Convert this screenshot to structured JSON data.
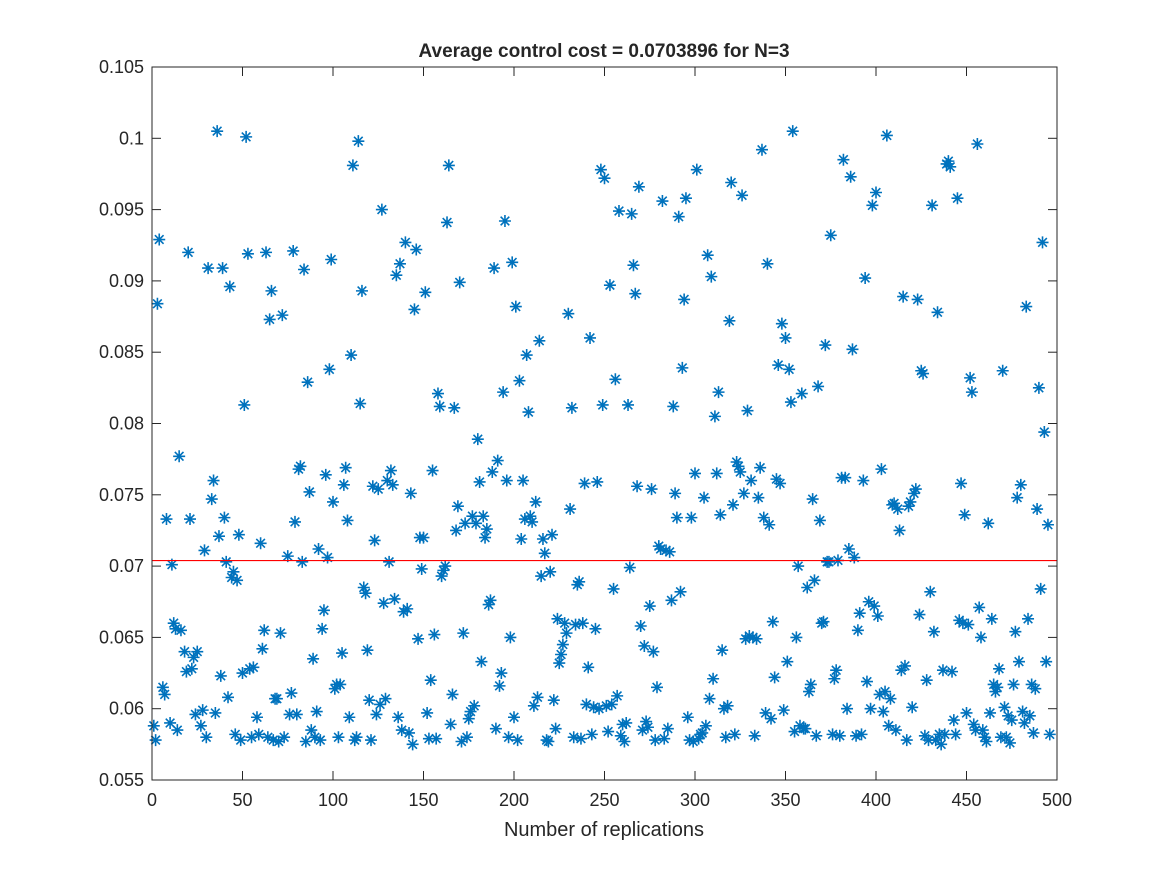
{
  "chart_data": {
    "type": "scatter",
    "title": "Average control cost = 0.0703896 for N=3",
    "xlabel": "Number of replications",
    "xlim": [
      0,
      500
    ],
    "xticks": [
      0,
      50,
      100,
      150,
      200,
      250,
      300,
      350,
      400,
      450,
      500
    ],
    "ylim": [
      0.055,
      0.105
    ],
    "yticks": [
      0.055,
      0.06,
      0.065,
      0.07,
      0.075,
      0.08,
      0.085,
      0.09,
      0.095,
      0.1,
      0.105
    ],
    "color": "#0072bd",
    "marker": "asterisk",
    "reference_line": {
      "value": 0.0703896,
      "color": "#ff0000"
    },
    "x": [
      1,
      2,
      3,
      4,
      6,
      7,
      8,
      10,
      11,
      12,
      13,
      14,
      15,
      16,
      18,
      19,
      20,
      21,
      22,
      23,
      24,
      25,
      27,
      28,
      29,
      30,
      31,
      33,
      34,
      35,
      36,
      37,
      38,
      39,
      40,
      41,
      42,
      43,
      44,
      45,
      46,
      47,
      48,
      49,
      50,
      51,
      52,
      53,
      54,
      55,
      56,
      58,
      59,
      60,
      61,
      62,
      63,
      64,
      65,
      66,
      67,
      68,
      69,
      70,
      71,
      72,
      73,
      75,
      76,
      77,
      78,
      79,
      80,
      81,
      82,
      83,
      84,
      85,
      86,
      87,
      88,
      89,
      90,
      91,
      92,
      93,
      94,
      95,
      96,
      97,
      98,
      99,
      100,
      101,
      102,
      103,
      104,
      105,
      106,
      107,
      108,
      109,
      110,
      111,
      112,
      113,
      114,
      115,
      116,
      117,
      118,
      119,
      120,
      121,
      122,
      123,
      124,
      125,
      126,
      127,
      128,
      129,
      130,
      131,
      132,
      133,
      134,
      135,
      136,
      137,
      138,
      139,
      140,
      141,
      142,
      143,
      144,
      145,
      146,
      147,
      148,
      149,
      150,
      151,
      152,
      153,
      154,
      155,
      156,
      157,
      158,
      159,
      160,
      161,
      162,
      163,
      164,
      165,
      166,
      167,
      168,
      169,
      170,
      171,
      172,
      173,
      174,
      175,
      176,
      177,
      178,
      179,
      180,
      181,
      182,
      183,
      184,
      185,
      186,
      187,
      188,
      189,
      190,
      191,
      192,
      193,
      194,
      195,
      196,
      197,
      198,
      199,
      200,
      201,
      202,
      203,
      204,
      205,
      206,
      207,
      208,
      209,
      210,
      211,
      212,
      213,
      214,
      215,
      216,
      217,
      218,
      219,
      220,
      221,
      222,
      223,
      224,
      225,
      226,
      227,
      228,
      229,
      230,
      231,
      232,
      233,
      234,
      235,
      236,
      237,
      238,
      239,
      240,
      241,
      242,
      243,
      244,
      245,
      246,
      247,
      248,
      249,
      250,
      251,
      252,
      253,
      254,
      255,
      256,
      257,
      258,
      259,
      260,
      261,
      262,
      263,
      264,
      265,
      266,
      267,
      268,
      269,
      270,
      271,
      272,
      273,
      274,
      275,
      276,
      277,
      278,
      279,
      280,
      281,
      282,
      283,
      284,
      285,
      286,
      287,
      288,
      289,
      290,
      291,
      292,
      293,
      294,
      295,
      296,
      297,
      298,
      299,
      300,
      301,
      302,
      303,
      304,
      305,
      306,
      307,
      308,
      309,
      310,
      311,
      312,
      313,
      314,
      315,
      316,
      317,
      318,
      319,
      320,
      321,
      322,
      323,
      324,
      325,
      326,
      327,
      328,
      329,
      330,
      331,
      332,
      333,
      334,
      335,
      336,
      337,
      338,
      339,
      340,
      341,
      342,
      343,
      344,
      345,
      346,
      347,
      348,
      349,
      350,
      351,
      352,
      353,
      354,
      355,
      356,
      357,
      358,
      359,
      360,
      361,
      362,
      363,
      364,
      365,
      366,
      367,
      368,
      369,
      370,
      371,
      372,
      373,
      374,
      375,
      376,
      377,
      378,
      379,
      380,
      381,
      382,
      383,
      384,
      385,
      386,
      387,
      388,
      389,
      390,
      391,
      392,
      393,
      394,
      395,
      396,
      397,
      398,
      399,
      400,
      401,
      402,
      403,
      404,
      405,
      406,
      407,
      408,
      409,
      410,
      411,
      412,
      413,
      414,
      415,
      416,
      417,
      418,
      419,
      420,
      421,
      422,
      423,
      424,
      425,
      426,
      427,
      428,
      429,
      430,
      431,
      432,
      433,
      434,
      435,
      436,
      437,
      438,
      439,
      440,
      441,
      442,
      443,
      444,
      445,
      446,
      447,
      448,
      449,
      450,
      451,
      452,
      453,
      454,
      455,
      456,
      457,
      458,
      459,
      460,
      461,
      462,
      463,
      464,
      465,
      466,
      467,
      468,
      469,
      470,
      471,
      472,
      473,
      474,
      475,
      476,
      477,
      478,
      479,
      480,
      481,
      482,
      483,
      484,
      485,
      486,
      487,
      488,
      489,
      490,
      491,
      492,
      493,
      494,
      495,
      496
    ],
    "values": [
      0.0588,
      0.0578,
      0.0884,
      0.0929,
      0.0615,
      0.061,
      0.0733,
      0.059,
      0.0701,
      0.066,
      0.0656,
      0.0585,
      0.0777,
      0.0655,
      0.064,
      0.0626,
      0.092,
      0.0733,
      0.0628,
      0.0636,
      0.0596,
      0.064,
      0.0588,
      0.0599,
      0.0711,
      0.058,
      0.0909,
      0.0747,
      0.076,
      0.0597,
      0.1005,
      0.0721,
      0.0623,
      0.0909,
      0.0734,
      0.0703,
      0.0608,
      0.0896,
      0.0692,
      0.0696,
      0.0582,
      0.069,
      0.0722,
      0.0578,
      0.0625,
      0.0813,
      0.1001,
      0.0919,
      0.0628,
      0.058,
      0.0629,
      0.0594,
      0.0582,
      0.0716,
      0.0642,
      0.0655,
      0.092,
      0.058,
      0.0873,
      0.0893,
      0.0578,
      0.0607,
      0.0607,
      0.0577,
      0.0653,
      0.0876,
      0.058,
      0.0707,
      0.0596,
      0.0611,
      0.0921,
      0.0731,
      0.0596,
      0.0768,
      0.077,
      0.0703,
      0.0908,
      0.0577,
      0.0829,
      0.0752,
      0.0585,
      0.0635,
      0.058,
      0.0598,
      0.0712,
      0.0578,
      0.0656,
      0.0669,
      0.0764,
      0.0706,
      0.0838,
      0.0915,
      0.0745,
      0.0614,
      0.0617,
      0.058,
      0.0617,
      0.0639,
      0.0757,
      0.0769,
      0.0732,
      0.0594,
      0.0848,
      0.0981,
      0.0578,
      0.058,
      0.0998,
      0.0814,
      0.0893,
      0.0685,
      0.0681,
      0.0641,
      0.0606,
      0.0578,
      0.0756,
      0.0718,
      0.0596,
      0.0754,
      0.0603,
      0.095,
      0.0674,
      0.0607,
      0.076,
      0.0703,
      0.0767,
      0.0757,
      0.0677,
      0.0904,
      0.0594,
      0.0912,
      0.0585,
      0.0668,
      0.0927,
      0.067,
      0.0583,
      0.0751,
      0.0575,
      0.088,
      0.0922,
      0.0649,
      0.072,
      0.0698,
      0.072,
      0.0892,
      0.0597,
      0.0579,
      0.062,
      0.0767,
      0.0652,
      0.0579,
      0.0821,
      0.0812,
      0.0693,
      0.0697,
      0.07,
      0.0941,
      0.0981,
      0.0589,
      0.061,
      0.0811,
      0.0725,
      0.0742,
      0.0899,
      0.0577,
      0.0653,
      0.073,
      0.058,
      0.0593,
      0.0598,
      0.0735,
      0.0602,
      0.073,
      0.0789,
      0.0759,
      0.0633,
      0.0735,
      0.072,
      0.0726,
      0.0673,
      0.0676,
      0.0766,
      0.0909,
      0.0586,
      0.0774,
      0.0616,
      0.0625,
      0.0822,
      0.0942,
      0.076,
      0.058,
      0.065,
      0.0913,
      0.0594,
      0.0882,
      0.0578,
      0.083,
      0.0719,
      0.076,
      0.0733,
      0.0848,
      0.0808,
      0.0735,
      0.0731,
      0.0602,
      0.0745,
      0.0608,
      0.0858,
      0.0693,
      0.0719,
      0.0709,
      0.0578,
      0.0577,
      0.0696,
      0.0722,
      0.0606,
      0.0586,
      0.0663,
      0.0632,
      0.0638,
      0.0645,
      0.066,
      0.0653,
      0.0877,
      0.074,
      0.0811,
      0.058,
      0.0659,
      0.0687,
      0.0689,
      0.0579,
      0.066,
      0.0758,
      0.0603,
      0.0629,
      0.086,
      0.0582,
      0.0601,
      0.0656,
      0.0759,
      0.06,
      0.0978,
      0.0813,
      0.0972,
      0.0602,
      0.0584,
      0.0897,
      0.0603,
      0.0684,
      0.0831,
      0.0609,
      0.0949,
      0.0581,
      0.0589,
      0.0577,
      0.059,
      0.0813,
      0.0699,
      0.0947,
      0.0911,
      0.0891,
      0.0756,
      0.0966,
      0.0658,
      0.0585,
      0.0644,
      0.0591,
      0.0587,
      0.0672,
      0.0754,
      0.064,
      0.0578,
      0.0615,
      0.0714,
      0.0712,
      0.0956,
      0.0579,
      0.0711,
      0.0586,
      0.071,
      0.0676,
      0.0812,
      0.0751,
      0.0734,
      0.0945,
      0.0682,
      0.0839,
      0.0887,
      0.0958,
      0.0594,
      0.0578,
      0.0734,
      0.0577,
      0.0765,
      0.0978,
      0.0579,
      0.0582,
      0.0583,
      0.0748,
      0.0588,
      0.0918,
      0.0607,
      0.0903,
      0.0621,
      0.0805,
      0.0765,
      0.0822,
      0.0736,
      0.0641,
      0.06,
      0.058,
      0.0602,
      0.0872,
      0.0969,
      0.0743,
      0.0582,
      0.0773,
      0.077,
      0.0766,
      0.096,
      0.0751,
      0.0649,
      0.0809,
      0.0651,
      0.076,
      0.065,
      0.0581,
      0.0649,
      0.0748,
      0.0769,
      0.0992,
      0.0734,
      0.0597,
      0.0912,
      0.0729,
      0.0593,
      0.0661,
      0.0622,
      0.0761,
      0.0841,
      0.0758,
      0.087,
      0.0599,
      0.086,
      0.0633,
      0.0838,
      0.0815,
      0.1005,
      0.0584,
      0.065,
      0.07,
      0.0588,
      0.0821,
      0.0586,
      0.0586,
      0.0685,
      0.0612,
      0.0617,
      0.0747,
      0.069,
      0.0581,
      0.0826,
      0.0732,
      0.066,
      0.0661,
      0.0855,
      0.0703,
      0.0703,
      0.0932,
      0.0582,
      0.0621,
      0.0627,
      0.0704,
      0.0581,
      0.0762,
      0.0985,
      0.0762,
      0.06,
      0.0712,
      0.0973,
      0.0852,
      0.0706,
      0.0581,
      0.0655,
      0.0667,
      0.0582,
      0.076,
      0.0902,
      0.0619,
      0.0675,
      0.06,
      0.0953,
      0.0672,
      0.0962,
      0.0665,
      0.061,
      0.0768,
      0.0598,
      0.0612,
      0.1002,
      0.0588,
      0.0607,
      0.0743,
      0.0744,
      0.0585,
      0.074,
      0.0725,
      0.0627,
      0.0889,
      0.063,
      0.0578,
      0.0742,
      0.0745,
      0.0601,
      0.0751,
      0.0754,
      0.0887,
      0.0666,
      0.0837,
      0.0835,
      0.0581,
      0.062,
      0.0578,
      0.0682,
      0.0953,
      0.0654,
      0.0578,
      0.0878,
      0.0582,
      0.0575,
      0.0627,
      0.0582,
      0.0982,
      0.0984,
      0.098,
      0.0626,
      0.0592,
      0.0582,
      0.0958,
      0.0662,
      0.0758,
      0.066,
      0.0736,
      0.0597,
      0.0659,
      0.0832,
      0.0822,
      0.0589,
      0.0585,
      0.0996,
      0.0671,
      0.065,
      0.0585,
      0.058,
      0.0577,
      0.073,
      0.0597,
      0.0663,
      0.0617,
      0.0612,
      0.0615,
      0.0628,
      0.058,
      0.0837,
      0.0601,
      0.058,
      0.0595,
      0.0576,
      0.0592,
      0.0617,
      0.0654,
      0.0748,
      0.0633,
      0.0757,
      0.0598,
      0.059,
      0.0882,
      0.0663,
      0.0595,
      0.0617,
      0.0583,
      0.0614,
      0.074,
      0.0825,
      0.0684,
      0.0927,
      0.0794,
      0.0633,
      0.0729,
      0.0582
    ]
  }
}
